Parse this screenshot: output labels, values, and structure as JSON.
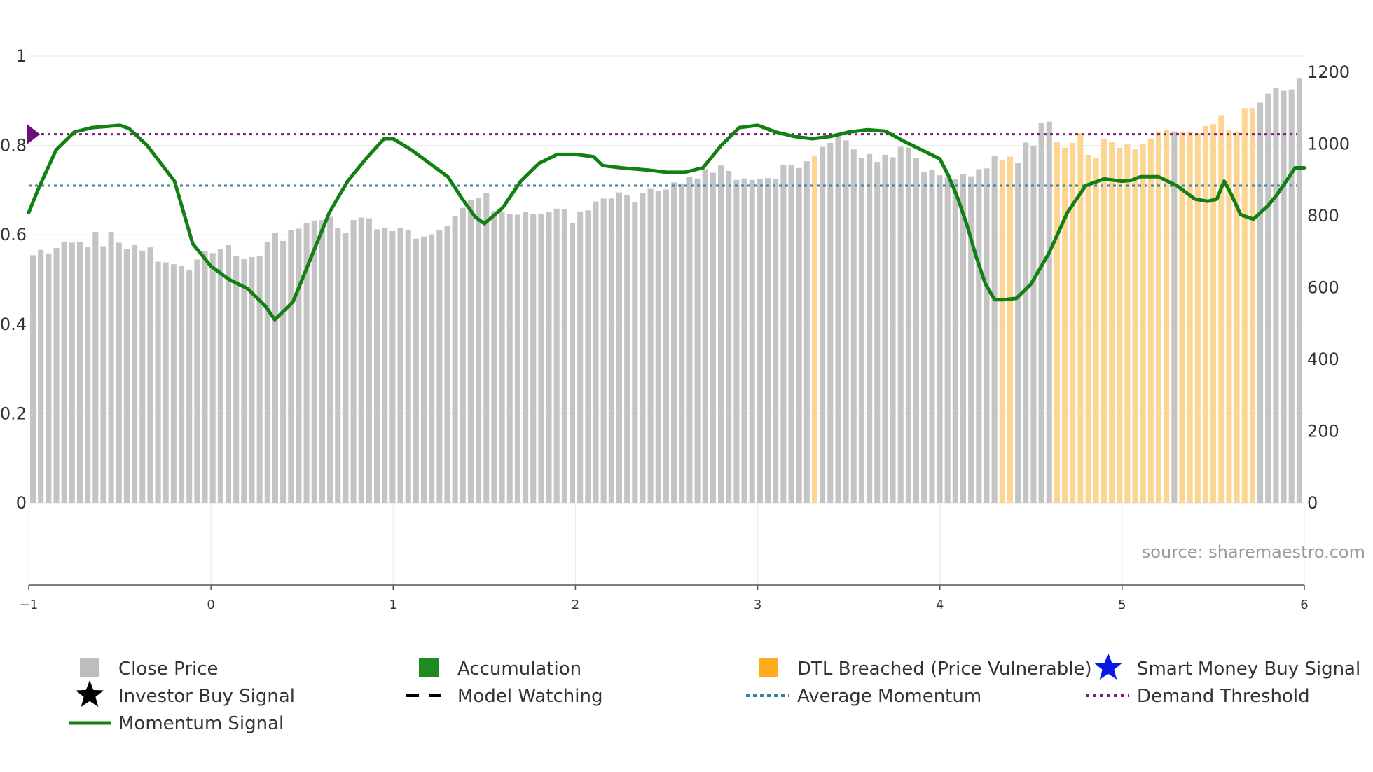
{
  "watermark": "source: sharemaestro.com",
  "colors": {
    "price_bar": "#c4c4c4",
    "price_bar_breached": "#fdd592",
    "accumulation": "#1f8a1f",
    "momentum": "#138013",
    "avg_momentum": "#3a7fa6",
    "demand_threshold": "#7a1a7a",
    "marker": "#6b0f7a",
    "dtl": "#ffad1f",
    "smart_money": "#0a18e6",
    "investor": "#000000",
    "grid": "#ececec"
  },
  "legend": [
    {
      "label": "Close Price",
      "icon": "square-icon",
      "color": "#bdbdbd"
    },
    {
      "label": "Accumulation",
      "icon": "square-icon",
      "color": "#1f8a1f"
    },
    {
      "label": "DTL Breached (Price Vulnerable)",
      "icon": "square-icon",
      "color": "#ffad1f"
    },
    {
      "label": "Smart Money Buy Signal",
      "icon": "star-icon",
      "color": "#0a18e6"
    },
    {
      "label": "Investor Buy Signal",
      "icon": "star-icon",
      "color": "#000000"
    },
    {
      "label": "Model Watching",
      "icon": "dash-line-icon",
      "color": "#000000"
    },
    {
      "label": "Average Momentum",
      "icon": "dotted-line-icon",
      "color": "#3a7fa6"
    },
    {
      "label": "Demand Threshold",
      "icon": "dotted-line-icon",
      "color": "#7a1a7a"
    },
    {
      "label": "Momentum Signal",
      "icon": "solid-line-icon",
      "color": "#138013"
    }
  ],
  "chart_data": {
    "type": "bar",
    "title": "",
    "xlabel": "",
    "ylabel": "",
    "left_axis": {
      "range": [
        0,
        1
      ],
      "ticks": [
        0,
        0.2,
        0.4,
        0.6,
        0.8,
        1
      ],
      "tick_labels": [
        "0",
        "0.2",
        "0.4",
        "0.6",
        "0.8",
        "1"
      ]
    },
    "right_axis": {
      "range": [
        0,
        1200
      ],
      "ticks": [
        0,
        200,
        400,
        600,
        800,
        1000,
        1200
      ],
      "tick_labels": [
        "0",
        "200",
        "400",
        "600",
        "800",
        "1000",
        "1200"
      ]
    },
    "bottom_axis": {
      "range": [
        -1,
        6
      ],
      "ticks": [
        -1,
        0,
        1,
        2,
        3,
        4,
        5,
        6
      ],
      "tick_labels": [
        "−1",
        "0",
        "1",
        "2",
        "3",
        "4",
        "5",
        "6"
      ]
    },
    "average_momentum": 0.71,
    "demand_threshold": 0.825,
    "close_price": [
      690,
      705,
      695,
      710,
      728,
      725,
      727,
      712,
      755,
      715,
      755,
      725,
      708,
      718,
      703,
      712,
      672,
      670,
      665,
      661,
      650,
      678,
      702,
      696,
      708,
      718,
      688,
      680,
      685,
      688,
      728,
      753,
      730,
      760,
      764,
      780,
      787,
      788,
      797,
      766,
      752,
      788,
      795,
      793,
      762,
      767,
      757,
      767,
      760,
      736,
      742,
      748,
      760,
      772,
      800,
      822,
      845,
      850,
      863,
      813,
      811,
      805,
      803,
      810,
      805,
      806,
      810,
      820,
      818,
      780,
      812,
      815,
      840,
      848,
      848,
      865,
      858,
      837,
      863,
      875,
      870,
      873,
      893,
      890,
      909,
      904,
      930,
      920,
      940,
      925,
      900,
      904,
      900,
      902,
      905,
      902,
      942,
      942,
      933,
      952,
      968,
      992,
      1003,
      1030,
      1010,
      985,
      960,
      972,
      950,
      970,
      963,
      992,
      990,
      960,
      922,
      927,
      913,
      908,
      903,
      915,
      910,
      930,
      932,
      967,
      955,
      965,
      947,
      1004,
      995,
      1058,
      1062,
      1005,
      990,
      1003,
      1030,
      970,
      960,
      1015,
      1005,
      990,
      1000,
      985,
      1000,
      1015,
      1035,
      1040,
      1035,
      1035,
      1035,
      1030,
      1050,
      1055,
      1080,
      1040,
      1035,
      1100,
      1100,
      1115,
      1140,
      1155,
      1148,
      1152,
      1182
    ],
    "dtl_breached_bars": [
      100,
      124,
      125,
      131,
      132,
      133,
      134,
      135,
      136,
      137,
      138,
      139,
      140,
      141,
      142,
      143,
      144,
      145,
      147,
      148,
      149,
      150,
      151,
      152,
      153,
      154,
      155,
      156
    ],
    "momentum": [
      [
        -1,
        0.65
      ],
      [
        -0.95,
        0.7
      ],
      [
        -0.85,
        0.79
      ],
      [
        -0.75,
        0.83
      ],
      [
        -0.65,
        0.84
      ],
      [
        -0.5,
        0.845
      ],
      [
        -0.45,
        0.838
      ],
      [
        -0.35,
        0.8
      ],
      [
        -0.2,
        0.72
      ],
      [
        -0.1,
        0.58
      ],
      [
        0,
        0.53
      ],
      [
        0.1,
        0.5
      ],
      [
        0.2,
        0.48
      ],
      [
        0.3,
        0.44
      ],
      [
        0.35,
        0.41
      ],
      [
        0.45,
        0.45
      ],
      [
        0.55,
        0.55
      ],
      [
        0.65,
        0.65
      ],
      [
        0.75,
        0.72
      ],
      [
        0.85,
        0.77
      ],
      [
        0.95,
        0.815
      ],
      [
        1,
        0.815
      ],
      [
        1.1,
        0.79
      ],
      [
        1.2,
        0.76
      ],
      [
        1.3,
        0.73
      ],
      [
        1.38,
        0.68
      ],
      [
        1.45,
        0.64
      ],
      [
        1.5,
        0.625
      ],
      [
        1.6,
        0.66
      ],
      [
        1.7,
        0.72
      ],
      [
        1.8,
        0.76
      ],
      [
        1.9,
        0.78
      ],
      [
        2,
        0.78
      ],
      [
        2.1,
        0.775
      ],
      [
        2.15,
        0.755
      ],
      [
        2.25,
        0.75
      ],
      [
        2.4,
        0.745
      ],
      [
        2.5,
        0.74
      ],
      [
        2.6,
        0.74
      ],
      [
        2.7,
        0.75
      ],
      [
        2.8,
        0.8
      ],
      [
        2.9,
        0.84
      ],
      [
        3,
        0.845
      ],
      [
        3.1,
        0.83
      ],
      [
        3.2,
        0.82
      ],
      [
        3.3,
        0.815
      ],
      [
        3.4,
        0.82
      ],
      [
        3.5,
        0.83
      ],
      [
        3.6,
        0.835
      ],
      [
        3.7,
        0.832
      ],
      [
        3.8,
        0.81
      ],
      [
        3.9,
        0.79
      ],
      [
        4,
        0.77
      ],
      [
        4.05,
        0.73
      ],
      [
        4.1,
        0.68
      ],
      [
        4.15,
        0.62
      ],
      [
        4.2,
        0.55
      ],
      [
        4.25,
        0.49
      ],
      [
        4.3,
        0.455
      ],
      [
        4.35,
        0.455
      ],
      [
        4.42,
        0.458
      ],
      [
        4.5,
        0.49
      ],
      [
        4.6,
        0.56
      ],
      [
        4.7,
        0.65
      ],
      [
        4.8,
        0.71
      ],
      [
        4.9,
        0.725
      ],
      [
        5,
        0.72
      ],
      [
        5.05,
        0.722
      ],
      [
        5.1,
        0.73
      ],
      [
        5.2,
        0.73
      ],
      [
        5.3,
        0.71
      ],
      [
        5.4,
        0.68
      ],
      [
        5.47,
        0.675
      ],
      [
        5.52,
        0.68
      ],
      [
        5.56,
        0.72
      ],
      [
        5.6,
        0.69
      ],
      [
        5.65,
        0.645
      ],
      [
        5.72,
        0.635
      ],
      [
        5.8,
        0.665
      ],
      [
        5.85,
        0.69
      ],
      [
        5.95,
        0.75
      ],
      [
        6,
        0.75
      ]
    ],
    "marker": {
      "x": -1,
      "y": 0.825,
      "shape": "diamond"
    }
  }
}
